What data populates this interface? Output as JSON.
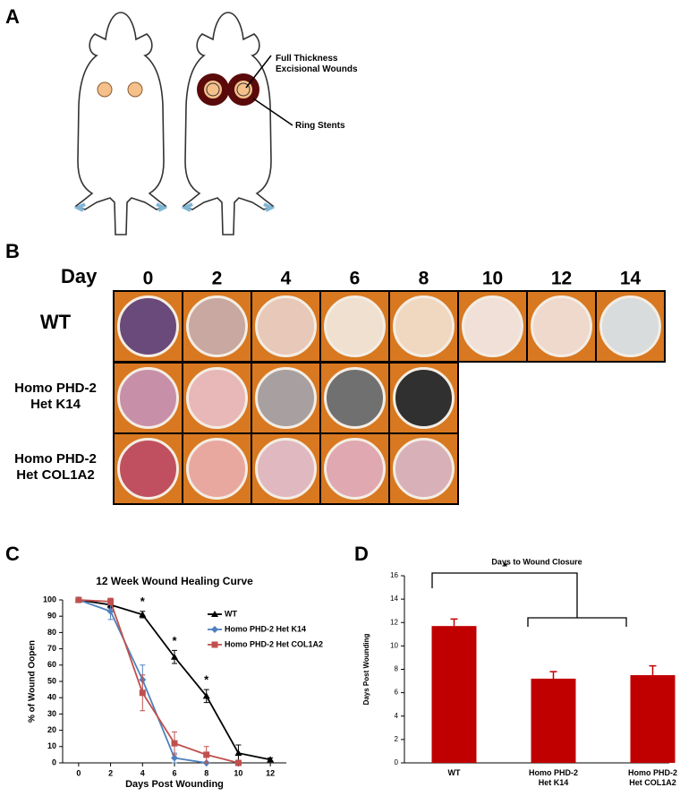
{
  "panel_labels": [
    "A",
    "B",
    "C",
    "D"
  ],
  "panel_a": {
    "annotations": [
      "Full Thickness\nExcisional Wounds",
      "Ring Stents"
    ]
  },
  "panel_b": {
    "corner": "Day",
    "days": [
      "0",
      "2",
      "4",
      "6",
      "8",
      "10",
      "12",
      "14"
    ],
    "rows": [
      "WT",
      "Homo PHD-2\nHet K14",
      "Homo PHD-2\nHet COL1A2"
    ]
  },
  "chart_data": [
    {
      "type": "line",
      "title": "12 Week Wound Healing Curve",
      "x_label": "Days Post Wounding",
      "y_label": "% of Wound Oopen",
      "x": [
        0,
        2,
        4,
        6,
        8,
        10,
        12
      ],
      "xlim": [
        -1,
        13
      ],
      "xticks": [
        0,
        2,
        4,
        6,
        8,
        10,
        12
      ],
      "ylim": [
        0,
        100
      ],
      "yticks": [
        0,
        10,
        20,
        30,
        40,
        50,
        60,
        70,
        80,
        90,
        100
      ],
      "legend": "upper right",
      "series": [
        {
          "name": "WT",
          "color": "#000000",
          "marker": "triangle",
          "values": [
            100,
            97,
            91,
            65,
            41,
            6,
            2
          ],
          "errors": [
            0,
            2,
            2,
            4,
            4,
            5,
            1
          ]
        },
        {
          "name": "Homo PHD-2 Het K14",
          "color": "#4f81bd",
          "marker": "diamond",
          "values": [
            100,
            93,
            51,
            3,
            0,
            null,
            null
          ],
          "errors": [
            0,
            5,
            9,
            3,
            0,
            null,
            null
          ]
        },
        {
          "name": "Homo PHD-2 Het COL1A2",
          "color": "#c0504d",
          "marker": "square",
          "values": [
            100,
            99,
            43,
            12,
            5,
            0,
            null
          ],
          "errors": [
            0,
            2,
            11,
            7,
            5,
            0,
            null
          ]
        }
      ],
      "annotations": [
        {
          "x": 4,
          "text": "*"
        },
        {
          "x": 6,
          "text": "*"
        },
        {
          "x": 8,
          "text": "*"
        }
      ]
    },
    {
      "type": "bar",
      "title": "Days to Wound Closure",
      "y_label": "Days Post Wounding",
      "categories": [
        "WT",
        "Homo PHD-2\nHet K14",
        "Homo PHD-2\nHet COL1A2"
      ],
      "values": [
        11.7,
        7.2,
        7.5
      ],
      "errors": [
        0.6,
        0.6,
        0.8
      ],
      "color": "#c00000",
      "ylim": [
        0,
        16
      ],
      "yticks": [
        0,
        2,
        4,
        6,
        8,
        10,
        12,
        14,
        16
      ],
      "annotations": [
        {
          "text": "*"
        }
      ]
    }
  ]
}
